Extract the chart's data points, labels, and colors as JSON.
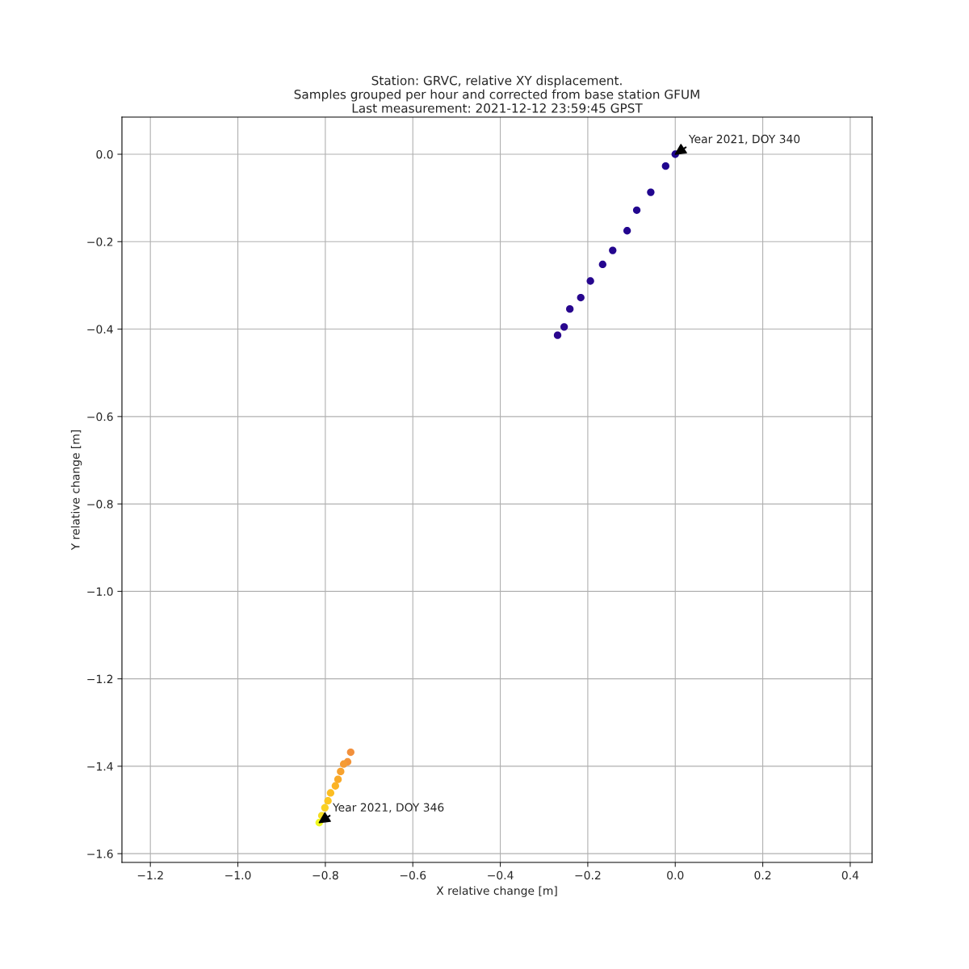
{
  "chart_data": {
    "type": "scatter",
    "title": "Station: GRVC, relative XY displacement.\nSamples grouped per hour and corrected from base station GFUM\nLast measurement: 2021-12-12 23:59:45 GPST",
    "xlabel": "X relative change [m]",
    "ylabel": "Y relative change [m]",
    "x": [
      0,
      -0.022,
      -0.056,
      -0.088,
      -0.11,
      -0.143,
      -0.166,
      -0.194,
      -0.216,
      -0.241,
      -0.254,
      -0.269,
      -0.742,
      -0.749,
      -0.758,
      -0.765,
      -0.771,
      -0.777,
      -0.788,
      -0.794,
      -0.801,
      -0.808,
      -0.814
    ],
    "values": [
      0,
      -0.027,
      -0.087,
      -0.128,
      -0.175,
      -0.22,
      -0.252,
      -0.29,
      -0.328,
      -0.354,
      -0.395,
      -0.414,
      -1.368,
      -1.39,
      -1.395,
      -1.412,
      -1.43,
      -1.445,
      -1.461,
      -1.479,
      -1.495,
      -1.513,
      -1.529
    ],
    "colors": [
      "#1f0690",
      "#20068f",
      "#21068f",
      "#22068f",
      "#23068f",
      "#24068f",
      "#25068f",
      "#26068e",
      "#27068e",
      "#28068e",
      "#29068e",
      "#2a068e",
      "#f2903c",
      "#f39438",
      "#f59b34",
      "#f7a22e",
      "#f9aa28",
      "#fbb325",
      "#fcbd22",
      "#fcc722",
      "#f9d124",
      "#f5dc24",
      "#f0f921"
    ],
    "annotations": [
      {
        "text": "Year 2021, DOY 340",
        "x": 0,
        "y": 0
      },
      {
        "text": "Year 2021, DOY 346",
        "x": -0.814,
        "y": -1.529
      }
    ],
    "xlim": [
      -1.265,
      0.45
    ],
    "ylim": [
      -1.62,
      0.085
    ],
    "xticks": [
      {
        "value": -1.2,
        "label": "−1.2"
      },
      {
        "value": -1.0,
        "label": "−1.0"
      },
      {
        "value": -0.8,
        "label": "−0.8"
      },
      {
        "value": -0.6,
        "label": "−0.6"
      },
      {
        "value": -0.4,
        "label": "−0.4"
      },
      {
        "value": -0.2,
        "label": "−0.2"
      },
      {
        "value": 0.0,
        "label": "0.0"
      },
      {
        "value": 0.2,
        "label": "0.2"
      },
      {
        "value": 0.4,
        "label": "0.4"
      }
    ],
    "yticks": [
      {
        "value": 0.0,
        "label": "0.0"
      },
      {
        "value": -0.2,
        "label": "−0.2"
      },
      {
        "value": -0.4,
        "label": "−0.4"
      },
      {
        "value": -0.6,
        "label": "−0.6"
      },
      {
        "value": -0.8,
        "label": "−0.8"
      },
      {
        "value": -1.0,
        "label": "−1.0"
      },
      {
        "value": -1.2,
        "label": "−1.2"
      },
      {
        "value": -1.4,
        "label": "−1.4"
      },
      {
        "value": -1.6,
        "label": "−1.6"
      }
    ],
    "grid": true,
    "marker": "circle"
  }
}
